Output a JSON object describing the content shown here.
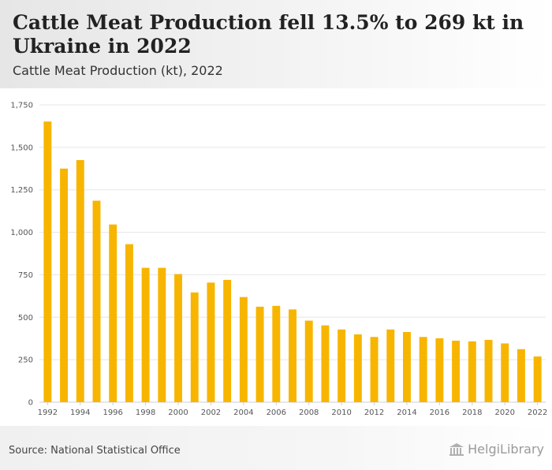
{
  "header": {
    "title": "Cattle Meat Production fell 13.5% to 269 kt in Ukraine in 2022",
    "subtitle": "Cattle Meat Production (kt), 2022"
  },
  "footer": {
    "source": "Source: National Statistical Office",
    "brand": "HelgiLibrary"
  },
  "colors": {
    "bar": "#f7b500",
    "grid": "#e6e6e6",
    "header_bg": "#ececec"
  },
  "chart_data": {
    "type": "bar",
    "categories": [
      "1992",
      "1993",
      "1994",
      "1995",
      "1996",
      "1997",
      "1998",
      "1999",
      "2000",
      "2001",
      "2002",
      "2003",
      "2004",
      "2005",
      "2006",
      "2007",
      "2008",
      "2009",
      "2010",
      "2011",
      "2012",
      "2013",
      "2014",
      "2015",
      "2016",
      "2017",
      "2018",
      "2019",
      "2020",
      "2021",
      "2022"
    ],
    "values": [
      1652,
      1375,
      1425,
      1186,
      1046,
      930,
      791,
      791,
      754,
      646,
      704,
      720,
      619,
      562,
      567,
      546,
      480,
      452,
      428,
      399,
      384,
      428,
      413,
      384,
      376,
      362,
      358,
      367,
      346,
      312,
      269
    ],
    "x_tick_labels": [
      "1992",
      "1994",
      "1996",
      "1998",
      "2000",
      "2002",
      "2004",
      "2006",
      "2008",
      "2010",
      "2012",
      "2014",
      "2016",
      "2018",
      "2020",
      "2022"
    ],
    "y_ticks": [
      0,
      250,
      500,
      750,
      1000,
      1250,
      1500,
      1750
    ],
    "y_tick_labels": [
      "0",
      "250",
      "500",
      "750",
      "1,000",
      "1,250",
      "1,500",
      "1,750"
    ],
    "ylim": [
      0,
      1750
    ],
    "grid": true,
    "legend": "none"
  }
}
